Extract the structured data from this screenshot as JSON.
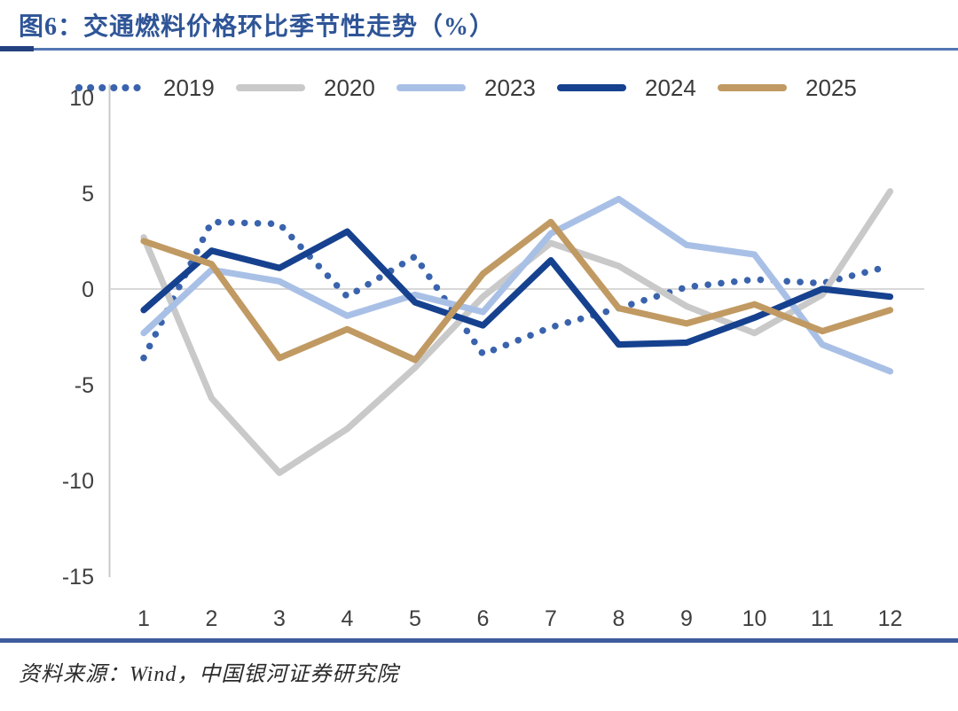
{
  "header": {
    "title": "图6：交通燃料价格环比季节性走势（%）"
  },
  "legend": {
    "position": "top",
    "items": [
      {
        "label": "2019",
        "color": "#3A63AD",
        "style": "dotted"
      },
      {
        "label": "2020",
        "color": "#C9C9C9",
        "style": "solid"
      },
      {
        "label": "2023",
        "color": "#A9C0E6",
        "style": "solid"
      },
      {
        "label": "2024",
        "color": "#16418F",
        "style": "solid"
      },
      {
        "label": "2025",
        "color": "#C09A62",
        "style": "solid"
      }
    ]
  },
  "chart_data": {
    "type": "line",
    "title": "交通燃料价格环比季节性走势（%）",
    "xlabel": "",
    "ylabel": "",
    "categories": [
      "1",
      "2",
      "3",
      "4",
      "5",
      "6",
      "7",
      "8",
      "9",
      "10",
      "11",
      "12"
    ],
    "y_ticks": [
      "10",
      "5",
      "0",
      "-5",
      "-10",
      "-15"
    ],
    "y_tick_values": [
      10,
      5,
      0,
      -5,
      -10,
      -15
    ],
    "ylim": [
      -15,
      10.5
    ],
    "grid": "zero-line-only",
    "legend_position": "top",
    "series": [
      {
        "name": "2019",
        "color": "#3A63AD",
        "style": "dotted",
        "values": [
          -3.6,
          3.5,
          3.4,
          -0.4,
          1.7,
          -3.4,
          -2.0,
          -1.0,
          0.1,
          0.5,
          0.3,
          1.2
        ]
      },
      {
        "name": "2020",
        "color": "#C9C9C9",
        "style": "solid",
        "values": [
          2.7,
          -5.7,
          -9.6,
          -7.3,
          -4.1,
          -0.4,
          2.4,
          1.2,
          -0.9,
          -2.3,
          -0.3,
          5.1
        ]
      },
      {
        "name": "2023",
        "color": "#A9C0E6",
        "style": "solid",
        "values": [
          -2.3,
          1.0,
          0.4,
          -1.4,
          -0.3,
          -1.2,
          2.9,
          4.7,
          2.3,
          1.8,
          -2.9,
          -4.3
        ]
      },
      {
        "name": "2024",
        "color": "#16418F",
        "style": "solid",
        "values": [
          -1.1,
          2.0,
          1.1,
          3.0,
          -0.7,
          -1.9,
          1.5,
          -2.9,
          -2.8,
          -1.5,
          0.0,
          -0.4
        ]
      },
      {
        "name": "2025",
        "color": "#C09A62",
        "style": "solid",
        "values": [
          2.5,
          1.3,
          -3.6,
          -2.1,
          -3.7,
          0.8,
          3.5,
          -1.0,
          -1.8,
          -0.8,
          -2.2,
          -1.1
        ]
      }
    ]
  },
  "axes": {
    "zero_line_color": "#D8D8D8",
    "axis_line_color": "#C9C9C9",
    "tick_label_color": "#3F3F3F"
  },
  "footer": {
    "source": "资料来源：Wind，中国银河证券研究院"
  }
}
